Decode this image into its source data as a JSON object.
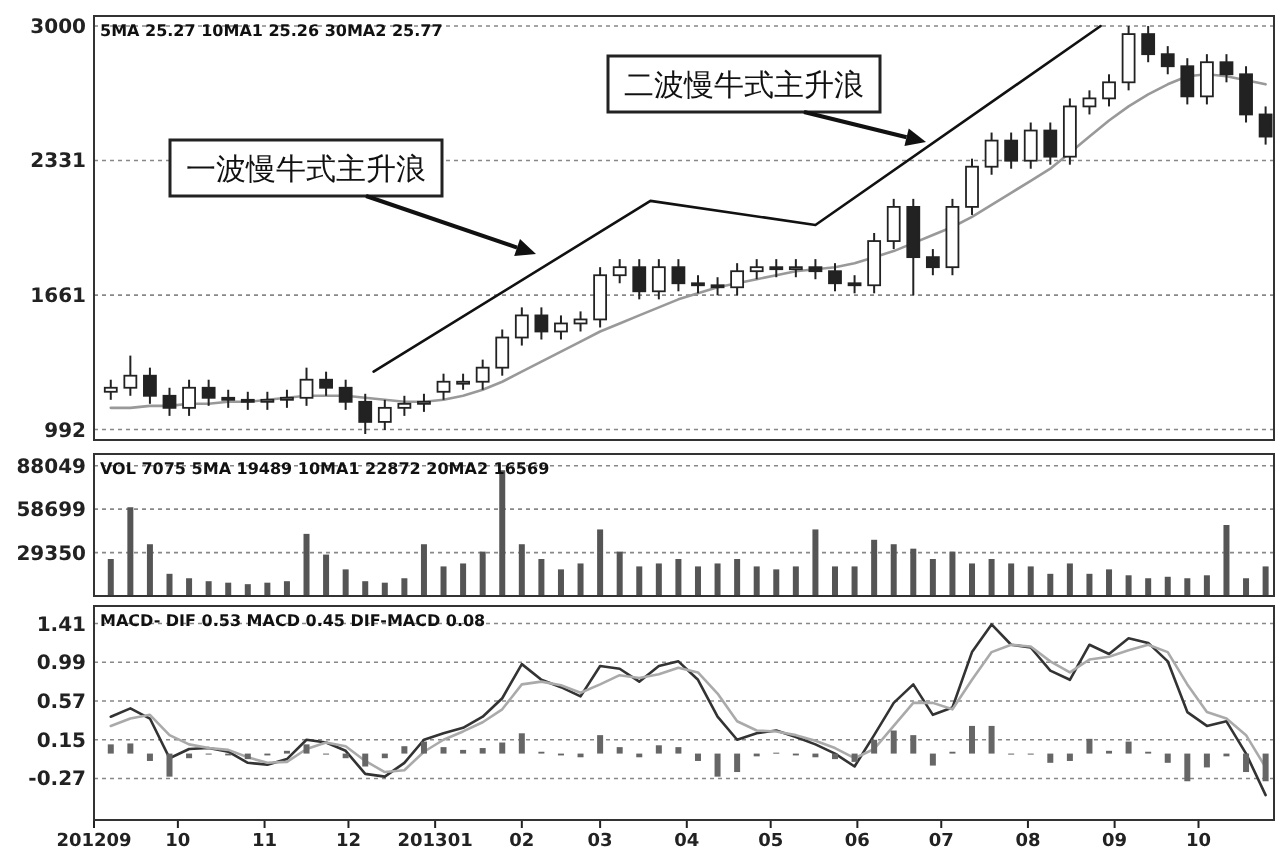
{
  "chart_data": [
    {
      "type": "candlestick",
      "color": "#222222",
      "x": [
        "2012-09-07",
        "2012-09-14",
        "2012-09-21",
        "2012-09-28",
        "2012-10-05",
        "2012-10-12",
        "2012-10-19",
        "2012-10-26",
        "2012-11-02",
        "2012-11-09",
        "2012-11-16",
        "2012-11-23",
        "2012-11-30",
        "2012-12-07",
        "2012-12-14",
        "2012-12-21",
        "2012-12-28",
        "2013-01-04",
        "2013-01-11",
        "2013-01-18",
        "2013-01-25",
        "2013-02-01",
        "2013-02-08",
        "2013-02-15",
        "2013-02-22",
        "2013-03-01",
        "2013-03-08",
        "2013-03-15",
        "2013-03-22",
        "2013-03-29",
        "2013-04-05",
        "2013-04-12",
        "2013-04-19",
        "2013-04-26",
        "2013-05-03",
        "2013-05-10",
        "2013-05-17",
        "2013-05-24",
        "2013-05-31",
        "2013-06-07",
        "2013-06-14",
        "2013-06-21",
        "2013-06-28",
        "2013-07-05",
        "2013-07-12",
        "2013-07-19",
        "2013-07-26",
        "2013-08-02",
        "2013-08-09",
        "2013-08-16",
        "2013-08-23",
        "2013-08-30",
        "2013-09-06",
        "2013-09-13",
        "2013-09-20",
        "2013-09-27",
        "2013-10-04",
        "2013-10-11",
        "2013-10-18",
        "2013-10-25"
      ],
      "ohlc": [
        [
          1180,
          1240,
          1140,
          1200
        ],
        [
          1200,
          1360,
          1160,
          1260
        ],
        [
          1260,
          1300,
          1120,
          1160
        ],
        [
          1160,
          1200,
          1060,
          1100
        ],
        [
          1100,
          1240,
          1060,
          1200
        ],
        [
          1200,
          1240,
          1110,
          1150
        ],
        [
          1150,
          1190,
          1100,
          1140
        ],
        [
          1140,
          1180,
          1090,
          1130
        ],
        [
          1130,
          1180,
          1090,
          1140
        ],
        [
          1140,
          1190,
          1100,
          1150
        ],
        [
          1150,
          1300,
          1110,
          1240
        ],
        [
          1240,
          1280,
          1160,
          1200
        ],
        [
          1200,
          1240,
          1090,
          1130
        ],
        [
          1130,
          1170,
          970,
          1030
        ],
        [
          1030,
          1140,
          990,
          1100
        ],
        [
          1100,
          1160,
          1060,
          1120
        ],
        [
          1120,
          1170,
          1080,
          1130
        ],
        [
          1180,
          1270,
          1140,
          1230
        ],
        [
          1230,
          1270,
          1190,
          1230
        ],
        [
          1230,
          1340,
          1190,
          1300
        ],
        [
          1300,
          1490,
          1260,
          1450
        ],
        [
          1450,
          1600,
          1410,
          1560
        ],
        [
          1560,
          1600,
          1440,
          1480
        ],
        [
          1480,
          1560,
          1440,
          1520
        ],
        [
          1520,
          1580,
          1480,
          1540
        ],
        [
          1540,
          1800,
          1500,
          1760
        ],
        [
          1760,
          1840,
          1720,
          1800
        ],
        [
          1800,
          1840,
          1640,
          1680
        ],
        [
          1680,
          1840,
          1640,
          1800
        ],
        [
          1800,
          1840,
          1680,
          1720
        ],
        [
          1720,
          1760,
          1670,
          1710
        ],
        [
          1710,
          1750,
          1660,
          1700
        ],
        [
          1700,
          1820,
          1660,
          1780
        ],
        [
          1780,
          1840,
          1740,
          1800
        ],
        [
          1800,
          1840,
          1750,
          1790
        ],
        [
          1790,
          1840,
          1750,
          1800
        ],
        [
          1800,
          1840,
          1740,
          1780
        ],
        [
          1780,
          1820,
          1680,
          1720
        ],
        [
          1720,
          1760,
          1670,
          1710
        ],
        [
          1710,
          1970,
          1670,
          1930
        ],
        [
          1930,
          2140,
          1890,
          2100
        ],
        [
          2100,
          2140,
          1660,
          1850
        ],
        [
          1850,
          1890,
          1760,
          1800
        ],
        [
          1800,
          2140,
          1760,
          2100
        ],
        [
          2100,
          2340,
          2060,
          2300
        ],
        [
          2300,
          2470,
          2260,
          2430
        ],
        [
          2430,
          2470,
          2290,
          2330
        ],
        [
          2330,
          2520,
          2290,
          2480
        ],
        [
          2480,
          2520,
          2310,
          2350
        ],
        [
          2350,
          2640,
          2310,
          2600
        ],
        [
          2600,
          2680,
          2560,
          2640
        ],
        [
          2640,
          2760,
          2600,
          2720
        ],
        [
          2720,
          3000,
          2680,
          2960
        ],
        [
          2960,
          3000,
          2820,
          2860
        ],
        [
          2860,
          2900,
          2760,
          2800
        ],
        [
          2800,
          2840,
          2610,
          2650
        ],
        [
          2650,
          2860,
          2610,
          2820
        ],
        [
          2820,
          2860,
          2720,
          2760
        ],
        [
          2760,
          2800,
          2520,
          2560
        ],
        [
          2560,
          2600,
          2410,
          2450
        ]
      ],
      "series": [
        {
          "type": "line",
          "color": "#999999",
          "values": [
            1100,
            1100,
            1110,
            1110,
            1120,
            1120,
            1130,
            1130,
            1140,
            1150,
            1160,
            1160,
            1160,
            1150,
            1140,
            1130,
            1130,
            1140,
            1160,
            1190,
            1230,
            1280,
            1330,
            1380,
            1430,
            1480,
            1520,
            1560,
            1600,
            1640,
            1670,
            1700,
            1720,
            1740,
            1760,
            1780,
            1790,
            1800,
            1820,
            1850,
            1880,
            1920,
            1960,
            2000,
            2050,
            2110,
            2170,
            2230,
            2290,
            2370,
            2450,
            2530,
            2600,
            2660,
            2710,
            2750,
            2760,
            2750,
            2730,
            2710
          ]
        },
        {
          "type": "line",
          "color": "#111111",
          "x": [
            "2012-12-10",
            "2013-03-19",
            "2013-05-17",
            "2013-08-27"
          ],
          "values": [
            1280,
            2130,
            2010,
            3000
          ]
        }
      ],
      "xlim": [
        "2012-09-01",
        "2013-10-28"
      ],
      "ylim": [
        940,
        3050
      ],
      "yticks": [
        992,
        1661,
        2331,
        3000
      ],
      "grid": "y",
      "tick_labels": "y",
      "annotations": [
        "5MA 25.27  10MA1 25.26  30MA2 25.77",
        "一波慢牛式主升浪",
        "二波慢牛式主升浪"
      ]
    },
    {
      "type": "bar",
      "color": "#555555",
      "x": [
        "2012-09-07",
        "2012-09-14",
        "2012-09-21",
        "2012-09-28",
        "2012-10-05",
        "2012-10-12",
        "2012-10-19",
        "2012-10-26",
        "2012-11-02",
        "2012-11-09",
        "2012-11-16",
        "2012-11-23",
        "2012-11-30",
        "2012-12-07",
        "2012-12-14",
        "2012-12-21",
        "2012-12-28",
        "2013-01-04",
        "2013-01-11",
        "2013-01-18",
        "2013-01-25",
        "2013-02-01",
        "2013-02-08",
        "2013-02-15",
        "2013-02-22",
        "2013-03-01",
        "2013-03-08",
        "2013-03-15",
        "2013-03-22",
        "2013-03-29",
        "2013-04-05",
        "2013-04-12",
        "2013-04-19",
        "2013-04-26",
        "2013-05-03",
        "2013-05-10",
        "2013-05-17",
        "2013-05-24",
        "2013-05-31",
        "2013-06-07",
        "2013-06-14",
        "2013-06-21",
        "2013-06-28",
        "2013-07-05",
        "2013-07-12",
        "2013-07-19",
        "2013-07-26",
        "2013-08-02",
        "2013-08-09",
        "2013-08-16",
        "2013-08-23",
        "2013-08-30",
        "2013-09-06",
        "2013-09-13",
        "2013-09-20",
        "2013-09-27",
        "2013-10-04",
        "2013-10-11",
        "2013-10-18",
        "2013-10-25"
      ],
      "values": [
        25000,
        60000,
        35000,
        15000,
        12000,
        10000,
        9000,
        8000,
        9000,
        10000,
        42000,
        28000,
        18000,
        10000,
        9000,
        12000,
        35000,
        20000,
        22000,
        30000,
        85000,
        35000,
        25000,
        18000,
        22000,
        45000,
        30000,
        20000,
        22000,
        25000,
        20000,
        22000,
        25000,
        20000,
        18000,
        20000,
        45000,
        20000,
        20000,
        38000,
        35000,
        32000,
        25000,
        30000,
        22000,
        25000,
        22000,
        20000,
        15000,
        22000,
        15000,
        18000,
        14000,
        12000,
        13000,
        12000,
        14000,
        48000,
        12000,
        20000
      ],
      "xlim": [
        "2012-09-01",
        "2013-10-28"
      ],
      "ylim": [
        0,
        96000
      ],
      "yticks": [
        29350,
        58699,
        88049
      ],
      "grid": "y",
      "tick_labels": "y",
      "annotations": [
        "VOL 7075  5MA 19489  10MA1 22872  20MA2 16569"
      ]
    },
    {
      "type": "line",
      "x": [
        "2012-09-07",
        "2012-09-14",
        "2012-09-21",
        "2012-09-28",
        "2012-10-05",
        "2012-10-12",
        "2012-10-19",
        "2012-10-26",
        "2012-11-02",
        "2012-11-09",
        "2012-11-16",
        "2012-11-23",
        "2012-11-30",
        "2012-12-07",
        "2012-12-14",
        "2012-12-21",
        "2012-12-28",
        "2013-01-04",
        "2013-01-11",
        "2013-01-18",
        "2013-01-25",
        "2013-02-01",
        "2013-02-08",
        "2013-02-15",
        "2013-02-22",
        "2013-03-01",
        "2013-03-08",
        "2013-03-15",
        "2013-03-22",
        "2013-03-29",
        "2013-04-05",
        "2013-04-12",
        "2013-04-19",
        "2013-04-26",
        "2013-05-03",
        "2013-05-10",
        "2013-05-17",
        "2013-05-24",
        "2013-05-31",
        "2013-06-07",
        "2013-06-14",
        "2013-06-21",
        "2013-06-28",
        "2013-07-05",
        "2013-07-12",
        "2013-07-19",
        "2013-07-26",
        "2013-08-02",
        "2013-08-09",
        "2013-08-16",
        "2013-08-23",
        "2013-08-30",
        "2013-09-06",
        "2013-09-13",
        "2013-09-20",
        "2013-09-27",
        "2013-10-04",
        "2013-10-11",
        "2013-10-18",
        "2013-10-25"
      ],
      "series": [
        {
          "type": "line",
          "color": "#333333",
          "values": [
            0.4,
            0.49,
            0.38,
            -0.05,
            0.05,
            0.06,
            0.02,
            -0.1,
            -0.12,
            -0.06,
            0.15,
            0.12,
            0.03,
            -0.22,
            -0.25,
            -0.1,
            0.15,
            0.22,
            0.28,
            0.4,
            0.6,
            0.97,
            0.8,
            0.72,
            0.62,
            0.95,
            0.92,
            0.78,
            0.95,
            1.0,
            0.8,
            0.4,
            0.15,
            0.22,
            0.25,
            0.18,
            0.1,
            0.0,
            -0.14,
            0.2,
            0.55,
            0.75,
            0.42,
            0.5,
            1.1,
            1.4,
            1.18,
            1.15,
            0.9,
            0.8,
            1.18,
            1.08,
            1.25,
            1.2,
            1.0,
            0.45,
            0.3,
            0.35,
            0.0,
            -0.45
          ]
        },
        {
          "type": "line",
          "color": "#aaaaaa",
          "values": [
            0.3,
            0.38,
            0.42,
            0.2,
            0.1,
            0.06,
            0.04,
            -0.04,
            -0.1,
            -0.09,
            0.05,
            0.12,
            0.08,
            -0.08,
            -0.2,
            -0.18,
            0.02,
            0.15,
            0.24,
            0.34,
            0.48,
            0.75,
            0.78,
            0.74,
            0.66,
            0.75,
            0.85,
            0.82,
            0.86,
            0.93,
            0.88,
            0.65,
            0.35,
            0.25,
            0.24,
            0.2,
            0.14,
            0.06,
            -0.05,
            0.05,
            0.3,
            0.55,
            0.55,
            0.48,
            0.8,
            1.1,
            1.18,
            1.16,
            1.0,
            0.88,
            1.02,
            1.05,
            1.12,
            1.18,
            1.1,
            0.75,
            0.45,
            0.38,
            0.2,
            -0.15
          ]
        },
        {
          "type": "bar",
          "color": "#666666",
          "values": [
            0.1,
            0.11,
            -0.08,
            -0.25,
            -0.05,
            0,
            -0.02,
            -0.06,
            -0.02,
            0.03,
            0.1,
            0,
            -0.05,
            -0.14,
            -0.05,
            0.08,
            0.13,
            0.07,
            0.04,
            0.06,
            0.12,
            0.22,
            0.02,
            -0.02,
            -0.04,
            0.2,
            0.07,
            -0.04,
            0.09,
            0.07,
            -0.08,
            -0.25,
            -0.2,
            -0.03,
            0.01,
            -0.02,
            -0.04,
            -0.06,
            -0.09,
            0.15,
            0.25,
            0.2,
            -0.13,
            0.02,
            0.3,
            0.3,
            0,
            -0.01,
            -0.1,
            -0.08,
            0.16,
            0.03,
            0.13,
            0.02,
            -0.1,
            -0.3,
            -0.15,
            -0.03,
            -0.2,
            -0.3
          ]
        }
      ],
      "xlim": [
        "2012-09-01",
        "2013-10-28"
      ],
      "ylim": [
        -0.72,
        1.6
      ],
      "yticks": [
        1.41,
        0.99,
        0.57,
        0.15,
        -0.27
      ],
      "grid": "y",
      "xticks": [
        {
          "value": "2012-09-01",
          "label": "201209"
        },
        {
          "value": "2012-10-01",
          "label": "10"
        },
        {
          "value": "2012-11-01",
          "label": "11"
        },
        {
          "value": "2012-12-01",
          "label": "12"
        },
        {
          "value": "2013-01-01",
          "label": "201301"
        },
        {
          "value": "2013-02-01",
          "label": "02"
        },
        {
          "value": "2013-03-01",
          "label": "03"
        },
        {
          "value": "2013-04-01",
          "label": "04"
        },
        {
          "value": "2013-05-01",
          "label": "05"
        },
        {
          "value": "2013-06-01",
          "label": "06"
        },
        {
          "value": "2013-07-01",
          "label": "07"
        },
        {
          "value": "2013-08-01",
          "label": "08"
        },
        {
          "value": "2013-09-01",
          "label": "09"
        },
        {
          "value": "2013-10-01",
          "label": "10"
        }
      ],
      "annotations": [
        "MACD- DIF 0.53 MACD 0.45 DIF-MACD 0.08"
      ]
    }
  ]
}
